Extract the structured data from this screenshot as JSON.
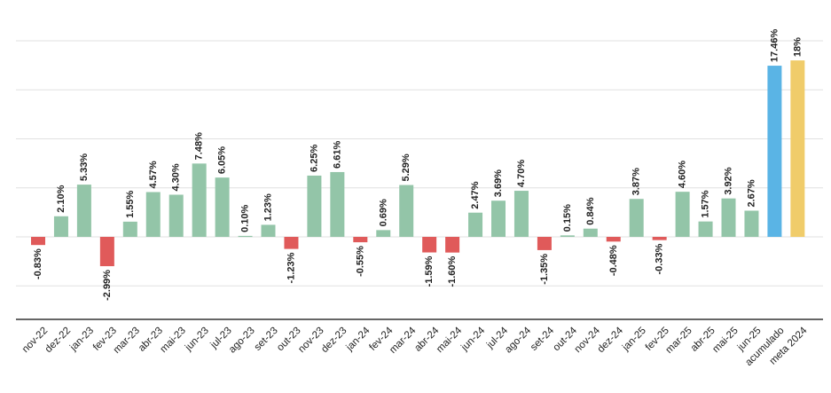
{
  "chart_data": {
    "type": "bar",
    "categories": [
      "nov-22",
      "dez-22",
      "jan-23",
      "fev-23",
      "mar-23",
      "abr-23",
      "mai-23",
      "jun-23",
      "jul-23",
      "ago-23",
      "set-23",
      "out-23",
      "nov-23",
      "dez-23",
      "jan-24",
      "fev-24",
      "mar-24",
      "abr-24",
      "mai-24",
      "jun-24",
      "jul-24",
      "ago-24",
      "set-24",
      "out-24",
      "nov-24",
      "dez-24",
      "jan-25",
      "fev-25",
      "mar-25",
      "abr-25",
      "mai-25",
      "jun-25",
      "acumulado",
      "meta 2024"
    ],
    "values": [
      -0.83,
      2.1,
      5.33,
      -2.99,
      1.55,
      4.57,
      4.3,
      7.48,
      6.05,
      0.1,
      1.23,
      -1.23,
      6.25,
      6.61,
      -0.55,
      0.69,
      5.29,
      -1.59,
      -1.6,
      2.47,
      3.69,
      4.7,
      -1.35,
      0.15,
      0.84,
      -0.48,
      3.87,
      -0.33,
      4.6,
      1.57,
      3.92,
      2.67,
      17.46,
      18
    ],
    "labels": [
      "-0.83%",
      "2.10%",
      "5.33%",
      "-2.99%",
      "1.55%",
      "4.57%",
      "4.30%",
      "7.48%",
      "6.05%",
      "0.10%",
      "1.23%",
      "-1.23%",
      "6.25%",
      "6.61%",
      "-0.55%",
      "0.69%",
      "5.29%",
      "-1.59%",
      "-1.60%",
      "2.47%",
      "3.69%",
      "4.70%",
      "-1.35%",
      "0.15%",
      "0.84%",
      "-0.48%",
      "3.87%",
      "-0.33%",
      "4.60%",
      "1.57%",
      "3.92%",
      "2.67%",
      "17.46%",
      "18%"
    ],
    "ylim": [
      -8.5,
      21
    ],
    "gridlines": [
      -5,
      0,
      5,
      10,
      15,
      20
    ],
    "grid": true,
    "colors": {
      "positive": "#93c5a8",
      "negative": "#e05a5a",
      "acumulado": "#5ab4e5",
      "meta": "#f0cc6a"
    }
  }
}
